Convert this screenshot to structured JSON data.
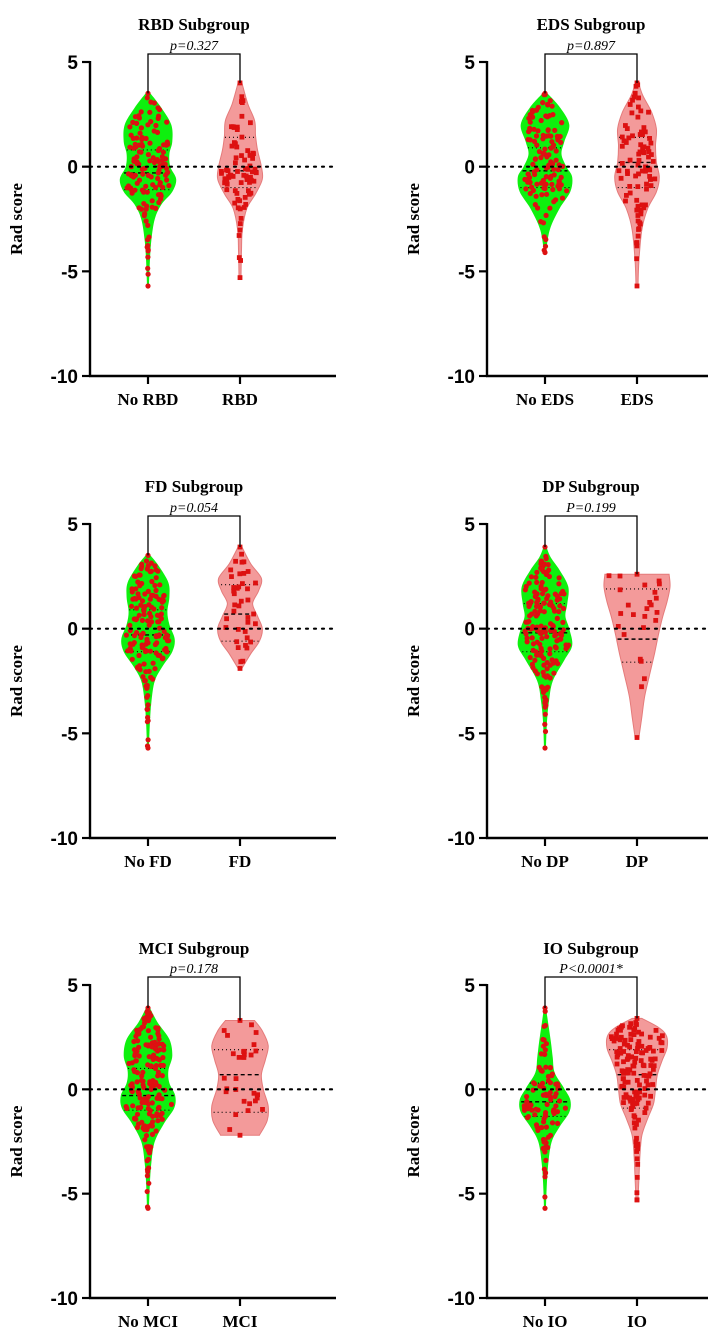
{
  "chart_data": [
    {
      "type": "violin",
      "title": "RBD Subgroup",
      "ylabel": "Rad score",
      "ylim": [
        -10,
        5
      ],
      "yticks": [
        "-10",
        "-5",
        "0",
        "5"
      ],
      "categories": [
        "No RBD",
        "RBD"
      ],
      "p_value": "p=0.327",
      "groups": [
        {
          "name": "No RBD",
          "min": -5.7,
          "max": 3.5,
          "n": 130,
          "q1": -1.1,
          "median": -0.3,
          "q3": 0.8,
          "density": [
            [
              -5.7,
              0.02
            ],
            [
              -4.5,
              0.04
            ],
            [
              -3.5,
              0.07
            ],
            [
              -2.5,
              0.14
            ],
            [
              -1.8,
              0.28
            ],
            [
              -1.2,
              0.5
            ],
            [
              -0.6,
              0.58
            ],
            [
              0,
              0.46
            ],
            [
              0.6,
              0.44
            ],
            [
              1.2,
              0.5
            ],
            [
              2,
              0.48
            ],
            [
              2.8,
              0.28
            ],
            [
              3.5,
              0.05
            ]
          ]
        },
        {
          "name": "RBD",
          "min": -5.3,
          "max": 4.0,
          "n": 75,
          "q1": -1.0,
          "median": -0.2,
          "q3": 1.4,
          "density": [
            [
              -5.3,
              0.02
            ],
            [
              -4,
              0.03
            ],
            [
              -3,
              0.05
            ],
            [
              -2,
              0.14
            ],
            [
              -1.3,
              0.32
            ],
            [
              -0.6,
              0.46
            ],
            [
              0,
              0.44
            ],
            [
              0.8,
              0.36
            ],
            [
              1.5,
              0.32
            ],
            [
              2.2,
              0.3
            ],
            [
              3,
              0.16
            ],
            [
              4,
              0.04
            ]
          ]
        }
      ]
    },
    {
      "type": "violin",
      "title": "EDS Subgroup",
      "ylabel": "Rad score",
      "ylim": [
        -10,
        5
      ],
      "yticks": [
        "-10",
        "-5",
        "0",
        "5"
      ],
      "categories": [
        "No EDS",
        "EDS"
      ],
      "p_value": "p=0.897",
      "groups": [
        {
          "name": "No EDS",
          "min": -4.1,
          "max": 3.5,
          "n": 125,
          "q1": -1.0,
          "median": -0.2,
          "q3": 0.9,
          "density": [
            [
              -4.1,
              0.02
            ],
            [
              -3,
              0.1
            ],
            [
              -2,
              0.3
            ],
            [
              -1.2,
              0.52
            ],
            [
              -0.5,
              0.56
            ],
            [
              0,
              0.44
            ],
            [
              0.6,
              0.34
            ],
            [
              1.2,
              0.4
            ],
            [
              2,
              0.5
            ],
            [
              2.8,
              0.32
            ],
            [
              3.5,
              0.05
            ]
          ]
        },
        {
          "name": "EDS",
          "min": -5.7,
          "max": 4.0,
          "n": 85,
          "q1": -1.0,
          "median": 0.2,
          "q3": 1.4,
          "density": [
            [
              -5.7,
              0.02
            ],
            [
              -4.5,
              0.04
            ],
            [
              -3,
              0.1
            ],
            [
              -2,
              0.22
            ],
            [
              -1.2,
              0.4
            ],
            [
              -0.5,
              0.46
            ],
            [
              0.2,
              0.4
            ],
            [
              1,
              0.38
            ],
            [
              1.8,
              0.4
            ],
            [
              2.6,
              0.3
            ],
            [
              3.4,
              0.12
            ],
            [
              4,
              0.03
            ]
          ]
        }
      ]
    },
    {
      "type": "violin",
      "title": "FD Subgroup",
      "ylabel": "Rad score",
      "ylim": [
        -10,
        5
      ],
      "yticks": [
        "-10",
        "-5",
        "0",
        "5"
      ],
      "categories": [
        "No FD",
        "FD"
      ],
      "p_value": "p=0.054",
      "groups": [
        {
          "name": "No FD",
          "min": -5.7,
          "max": 3.5,
          "n": 150,
          "q1": -1.1,
          "median": -0.3,
          "q3": 0.9,
          "density": [
            [
              -5.7,
              0.02
            ],
            [
              -4.5,
              0.04
            ],
            [
              -3.5,
              0.07
            ],
            [
              -2.5,
              0.14
            ],
            [
              -1.8,
              0.3
            ],
            [
              -1.1,
              0.5
            ],
            [
              -0.5,
              0.55
            ],
            [
              0.2,
              0.44
            ],
            [
              0.8,
              0.4
            ],
            [
              1.5,
              0.44
            ],
            [
              2.2,
              0.42
            ],
            [
              3,
              0.22
            ],
            [
              3.5,
              0.05
            ]
          ]
        },
        {
          "name": "FD",
          "min": -1.9,
          "max": 3.9,
          "n": 38,
          "q1": -0.6,
          "median": 0.7,
          "q3": 2.1,
          "density": [
            [
              -1.9,
              0.04
            ],
            [
              -1.2,
              0.22
            ],
            [
              -0.6,
              0.4
            ],
            [
              0,
              0.46
            ],
            [
              0.6,
              0.36
            ],
            [
              1.2,
              0.26
            ],
            [
              1.8,
              0.38
            ],
            [
              2.4,
              0.44
            ],
            [
              3.1,
              0.22
            ],
            [
              3.9,
              0.04
            ]
          ]
        }
      ]
    },
    {
      "type": "violin",
      "title": "DP Subgroup",
      "ylabel": "Rad score",
      "ylim": [
        -10,
        5
      ],
      "yticks": [
        "-10",
        "-5",
        "0",
        "5"
      ],
      "categories": [
        "No DP",
        "DP"
      ],
      "p_value": "P=0.199",
      "groups": [
        {
          "name": "No DP",
          "min": -5.7,
          "max": 3.9,
          "n": 165,
          "q1": -1.1,
          "median": -0.2,
          "q3": 1.2,
          "density": [
            [
              -5.7,
              0.02
            ],
            [
              -4.5,
              0.04
            ],
            [
              -3.5,
              0.08
            ],
            [
              -2.5,
              0.16
            ],
            [
              -1.5,
              0.4
            ],
            [
              -0.8,
              0.56
            ],
            [
              0,
              0.5
            ],
            [
              0.6,
              0.42
            ],
            [
              1.2,
              0.46
            ],
            [
              2,
              0.48
            ],
            [
              2.8,
              0.3
            ],
            [
              3.4,
              0.12
            ],
            [
              3.9,
              0.03
            ]
          ]
        },
        {
          "name": "DP",
          "min": -5.2,
          "max": 2.6,
          "n": 24,
          "q1": -1.6,
          "median": -0.5,
          "q3": 1.9,
          "density": [
            [
              -5.2,
              0.04
            ],
            [
              -4.2,
              0.1
            ],
            [
              -3.2,
              0.16
            ],
            [
              -2.2,
              0.26
            ],
            [
              -1.2,
              0.36
            ],
            [
              -0.3,
              0.44
            ],
            [
              0.5,
              0.52
            ],
            [
              1.3,
              0.62
            ],
            [
              2,
              0.68
            ],
            [
              2.6,
              0.66
            ]
          ]
        }
      ]
    },
    {
      "type": "violin",
      "title": "MCI Subgroup",
      "ylabel": "Rad score",
      "ylim": [
        -10,
        5
      ],
      "yticks": [
        "-10",
        "-5",
        "0",
        "5"
      ],
      "categories": [
        "No MCI",
        "MCI"
      ],
      "p_value": "p=0.178",
      "groups": [
        {
          "name": "No MCI",
          "min": -5.7,
          "max": 3.9,
          "n": 175,
          "q1": -1.0,
          "median": -0.3,
          "q3": 1.0,
          "density": [
            [
              -5.7,
              0.02
            ],
            [
              -4.5,
              0.04
            ],
            [
              -3.5,
              0.07
            ],
            [
              -2.5,
              0.14
            ],
            [
              -1.6,
              0.34
            ],
            [
              -0.9,
              0.54
            ],
            [
              -0.3,
              0.56
            ],
            [
              0.3,
              0.44
            ],
            [
              0.9,
              0.42
            ],
            [
              1.6,
              0.5
            ],
            [
              2.4,
              0.44
            ],
            [
              3.2,
              0.2
            ],
            [
              3.9,
              0.04
            ]
          ]
        },
        {
          "name": "MCI",
          "min": -2.2,
          "max": 3.3,
          "n": 28,
          "q1": -1.1,
          "median": 0.7,
          "q3": 1.9,
          "density": [
            [
              -2.2,
              0.4
            ],
            [
              -1.5,
              0.56
            ],
            [
              -0.8,
              0.58
            ],
            [
              0,
              0.48
            ],
            [
              0.7,
              0.44
            ],
            [
              1.4,
              0.52
            ],
            [
              2.1,
              0.58
            ],
            [
              2.8,
              0.46
            ],
            [
              3.3,
              0.3
            ]
          ]
        }
      ]
    },
    {
      "type": "violin",
      "title": "IO Subgroup",
      "ylabel": "Rad score",
      "ylim": [
        -10,
        5
      ],
      "yticks": [
        "-10",
        "-5",
        "0",
        "5"
      ],
      "categories": [
        "No IO",
        "IO"
      ],
      "p_value": "P<0.0001*",
      "groups": [
        {
          "name": "No IO",
          "min": -5.7,
          "max": 3.9,
          "n": 95,
          "q1": -1.3,
          "median": -0.6,
          "q3": 0.3,
          "density": [
            [
              -5.7,
              0.02
            ],
            [
              -4.5,
              0.04
            ],
            [
              -3.5,
              0.07
            ],
            [
              -2.5,
              0.14
            ],
            [
              -1.8,
              0.3
            ],
            [
              -1.1,
              0.5
            ],
            [
              -0.5,
              0.52
            ],
            [
              0.1,
              0.38
            ],
            [
              0.8,
              0.2
            ],
            [
              1.5,
              0.16
            ],
            [
              2.3,
              0.12
            ],
            [
              3.1,
              0.07
            ],
            [
              3.9,
              0.02
            ]
          ]
        },
        {
          "name": "IO",
          "min": -5.3,
          "max": 3.4,
          "n": 140,
          "q1": -0.9,
          "median": 0.7,
          "q3": 1.9,
          "density": [
            [
              -5.3,
              0.02
            ],
            [
              -4.3,
              0.04
            ],
            [
              -3.2,
              0.06
            ],
            [
              -2.2,
              0.1
            ],
            [
              -1.4,
              0.22
            ],
            [
              -0.7,
              0.34
            ],
            [
              0,
              0.38
            ],
            [
              0.7,
              0.42
            ],
            [
              1.4,
              0.52
            ],
            [
              2,
              0.62
            ],
            [
              2.6,
              0.6
            ],
            [
              3,
              0.42
            ],
            [
              3.4,
              0.1
            ]
          ]
        }
      ]
    }
  ],
  "colors": {
    "group1_fill": "#0ef00e",
    "group2_fill": "#f39a9a",
    "group2_outline": "#e57b7b",
    "point": "#dd1111",
    "axis": "#000000"
  }
}
